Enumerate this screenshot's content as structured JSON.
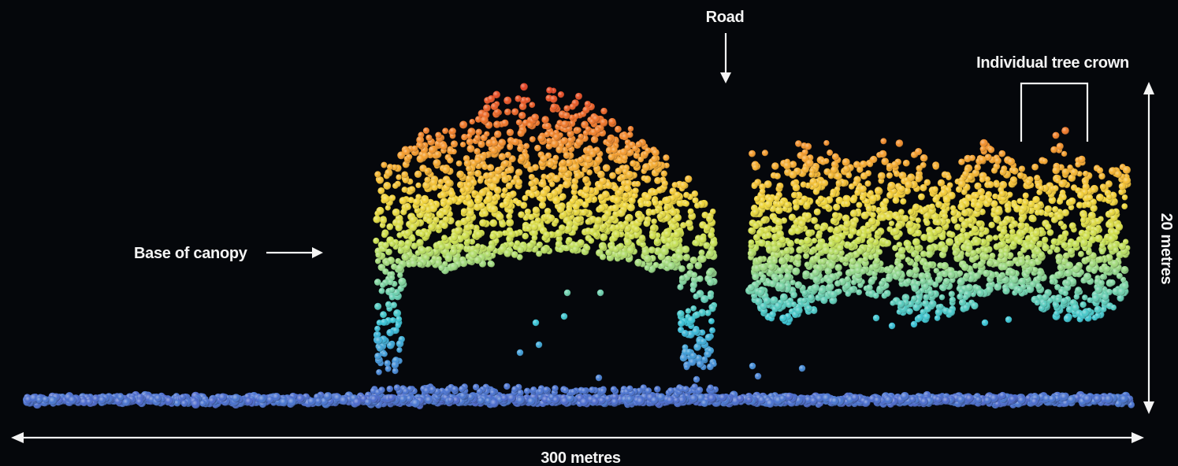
{
  "labels": {
    "road": "Road",
    "tree_crown": "Individual tree crown",
    "base_canopy": "Base of canopy",
    "width": "300 metres",
    "height": "20 metres"
  },
  "colors": {
    "background": "#05070b",
    "ground": "#4a5cc8",
    "annotation": "#f4f4f4",
    "height_ramp": [
      "#4a5cc8",
      "#3f8fd6",
      "#33c2d4",
      "#7fd39a",
      "#c9df4a",
      "#f2d233",
      "#f4a12a",
      "#ec6a22",
      "#e0301e"
    ]
  }
}
